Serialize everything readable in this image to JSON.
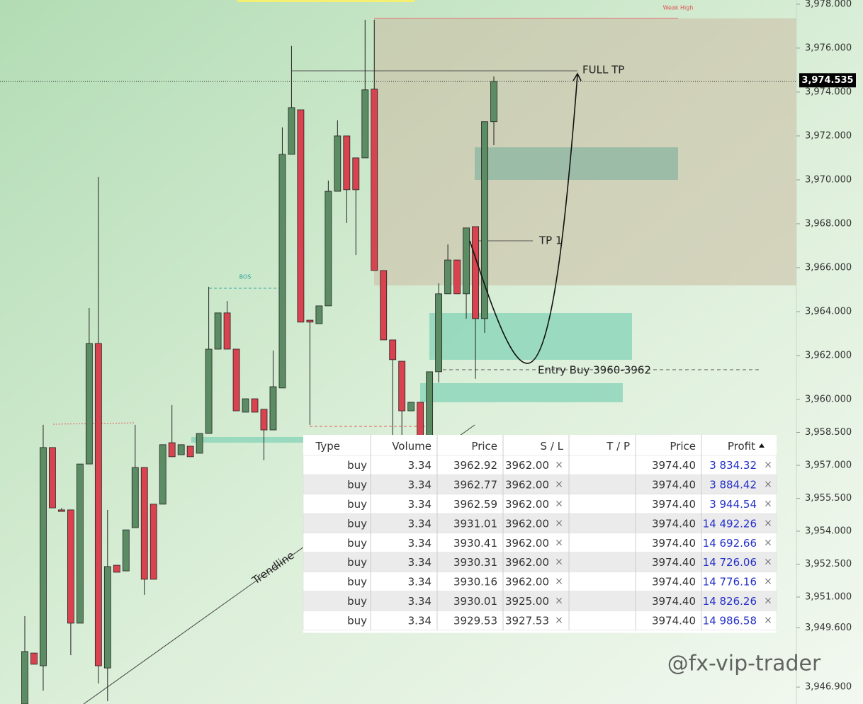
{
  "chart_data": {
    "type": "candlestick",
    "open": [
      3946.13,
      3948.45,
      3947.87,
      3957.81,
      3954.97,
      3954.97,
      3949.81,
      3957.06,
      3962.55,
      3947.77,
      3952.45,
      3952.19,
      3954.16,
      3956.9,
      3955.23,
      3955.23,
      3958.03,
      3957.48,
      3957.87,
      3957.55,
      3958.45,
      3962.29,
      3963.94,
      3962.29,
      3959.42,
      3960.03,
      3959.55,
      3958.61,
      3960.52,
      3971.16,
      3973.19,
      3963.61,
      3963.45,
      3964.26,
      3969.48,
      3972.0,
      3971.0,
      3971.0,
      3974.13,
      3965.87,
      3962.71,
      3961.74,
      3959.48,
      3959.87,
      3957.94,
      3961.26,
      3964.81,
      3966.35,
      3964.81,
      3967.87,
      3963.68,
      3972.65
    ],
    "high": [
      3950.13,
      3948.45,
      3958.84,
      3957.81,
      3955.06,
      3954.97,
      3957.06,
      3964.16,
      3970.13,
      3954.97,
      3952.45,
      3954.06,
      3958.84,
      3956.9,
      3955.23,
      3957.94,
      3959.74,
      3957.94,
      3957.87,
      3958.45,
      3965.13,
      3963.94,
      3964.48,
      3962.29,
      3960.03,
      3960.03,
      3959.55,
      3962.23,
      3972.39,
      3976.1,
      3973.19,
      3963.61,
      3964.26,
      3969.97,
      3972.71,
      3972.0,
      3971.0,
      3977.29,
      3977.29,
      3965.87,
      3962.71,
      3961.74,
      3959.87,
      3959.87,
      3961.26,
      3965.29,
      3967.06,
      3966.35,
      3967.81,
      3967.87,
      3972.65,
      3974.71
    ],
    "low": [
      3946.13,
      3947.94,
      3946.74,
      3955.06,
      3954.9,
      3948.35,
      3949.81,
      3957.06,
      3947.06,
      3946.26,
      3952.13,
      3952.19,
      3954.16,
      3951.1,
      3951.81,
      3955.23,
      3957.39,
      3957.48,
      3957.39,
      3957.55,
      3958.45,
      3962.29,
      3962.29,
      3959.48,
      3959.42,
      3959.42,
      3957.23,
      3958.61,
      3960.52,
      3971.16,
      3963.52,
      3958.84,
      3963.45,
      3964.26,
      3969.48,
      3968.03,
      3966.58,
      3971.0,
      3965.87,
      3962.71,
      3955.77,
      3955.94,
      3959.48,
      3957.94,
      3957.94,
      3960.77,
      3964.81,
      3964.81,
      3963.68,
      3960.94,
      3963.03,
      3971.58
    ],
    "close": [
      3948.52,
      3947.94,
      3957.81,
      3955.06,
      3954.9,
      3949.81,
      3957.06,
      3962.55,
      3947.87,
      3952.39,
      3952.13,
      3954.06,
      3956.9,
      3951.81,
      3951.81,
      3957.94,
      3957.39,
      3957.94,
      3957.39,
      3958.45,
      3962.29,
      3963.94,
      3962.29,
      3959.48,
      3960.03,
      3959.42,
      3958.61,
      3960.58,
      3971.16,
      3973.29,
      3963.52,
      3963.52,
      3964.26,
      3969.48,
      3972.0,
      3969.55,
      3969.55,
      3974.1,
      3965.87,
      3962.71,
      3961.81,
      3959.48,
      3959.87,
      3957.94,
      3961.26,
      3964.81,
      3966.35,
      3964.81,
      3967.81,
      3963.68,
      3972.65,
      3974.48
    ],
    "up_color": "#5b8c63",
    "down_color": "#d8434f",
    "ylim": [
      3946.13,
      3978.19
    ],
    "yticks": [
      {
        "value": 3978,
        "label": "3,978.000"
      },
      {
        "value": 3976,
        "label": "3,976.000"
      },
      {
        "value": 3974,
        "label": "3,974.000"
      },
      {
        "value": 3972,
        "label": "3,972.000"
      },
      {
        "value": 3970,
        "label": "3,970.000"
      },
      {
        "value": 3968,
        "label": "3,968.000"
      },
      {
        "value": 3966,
        "label": "3,966.000"
      },
      {
        "value": 3964,
        "label": "3,964.000"
      },
      {
        "value": 3962,
        "label": "3,962.000"
      },
      {
        "value": 3960,
        "label": "3,960.000"
      },
      {
        "value": 3958.5,
        "label": "3,958.500"
      },
      {
        "value": 3957,
        "label": "3,957.000"
      },
      {
        "value": 3955.5,
        "label": "3,955.500"
      },
      {
        "value": 3954,
        "label": "3,954.000"
      },
      {
        "value": 3952.5,
        "label": "3,952.500"
      },
      {
        "value": 3951,
        "label": "3,951.000"
      },
      {
        "value": 3949.6,
        "label": "3,949.600"
      },
      {
        "value": 3946.9,
        "label": "3,946.900"
      }
    ],
    "current_price": {
      "value": 3974.535,
      "label": "3,974.535"
    },
    "annotations": {
      "full_tp": "FULL TP",
      "tp1": "TP 1",
      "entry": "Entry Buy 3960-3962",
      "trendline": "Trendline",
      "bos": "BOS",
      "weak_high": "Weak High"
    }
  },
  "table": {
    "columns": [
      "Type",
      "Volume",
      "Price",
      "S / L",
      "T / P",
      "Price",
      "Profit"
    ],
    "rows": [
      [
        "buy",
        "3.34",
        "3962.92",
        "3962.00",
        "",
        "3974.40",
        "3 834.32"
      ],
      [
        "buy",
        "3.34",
        "3962.77",
        "3962.00",
        "",
        "3974.40",
        "3 884.42"
      ],
      [
        "buy",
        "3.34",
        "3962.59",
        "3962.00",
        "",
        "3974.40",
        "3 944.54"
      ],
      [
        "buy",
        "3.34",
        "3931.01",
        "3962.00",
        "",
        "3974.40",
        "14 492.26"
      ],
      [
        "buy",
        "3.34",
        "3930.41",
        "3962.00",
        "",
        "3974.40",
        "14 692.66"
      ],
      [
        "buy",
        "3.34",
        "3930.31",
        "3962.00",
        "",
        "3974.40",
        "14 726.06"
      ],
      [
        "buy",
        "3.34",
        "3930.16",
        "3962.00",
        "",
        "3974.40",
        "14 776.16"
      ],
      [
        "buy",
        "3.34",
        "3930.01",
        "3925.00",
        "",
        "3974.40",
        "14 826.26"
      ],
      [
        "buy",
        "3.34",
        "3929.53",
        "3927.53",
        "",
        "3974.40",
        "14 986.58"
      ]
    ]
  },
  "watermark": "@fx-vip-trader"
}
